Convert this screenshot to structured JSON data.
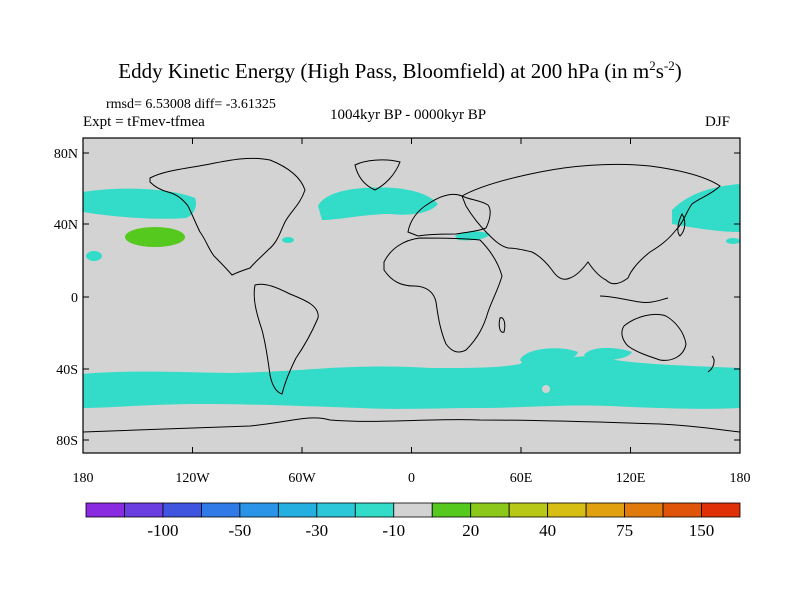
{
  "title": {
    "main": "Eddy Kinetic Energy (High Pass, Bloomfield) at 200 hPa (in m",
    "sup1": "2",
    "mid": "s",
    "sup2": "-2",
    "end": ")"
  },
  "stats": "rmsd= 6.53008 diff= -3.61325",
  "experiment": "Expt = tFmev-tfmea",
  "period": "1004kyr BP - 0000kyr BP",
  "season": "DJF",
  "y_ticks": [
    "80N",
    "40N",
    "0",
    "40S",
    "80S"
  ],
  "x_ticks": [
    "180",
    "120W",
    "60W",
    "0",
    "60E",
    "120E",
    "180"
  ],
  "colorbar": {
    "colors": [
      "#8a2be2",
      "#6a3ee0",
      "#3f55e0",
      "#2f7ae6",
      "#2a95e8",
      "#25aee0",
      "#2cc7d8",
      "#33dcc8",
      "#d3d3d3",
      "#55c91e",
      "#8cc81a",
      "#b7c816",
      "#d6bf12",
      "#e0a010",
      "#e07a0c",
      "#e0540a",
      "#e03008"
    ],
    "labels": [
      "-100",
      "-50",
      "-30",
      "-10",
      "20",
      "40",
      "75",
      "150"
    ]
  },
  "colors": {
    "land_background": "#d3d3d3",
    "negative_anomaly": "#33dcc8",
    "positive_anomaly": "#55c91e"
  }
}
